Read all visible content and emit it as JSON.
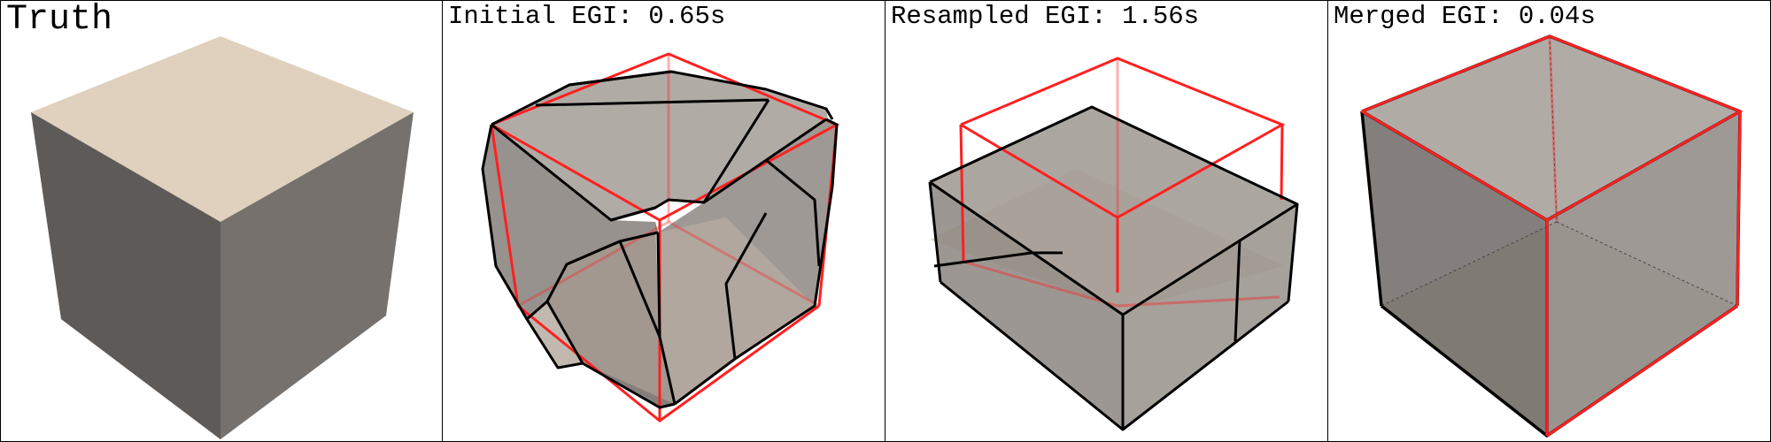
{
  "panels": [
    {
      "title": "Truth"
    },
    {
      "title": "Initial EGI: 0.65s"
    },
    {
      "title": "Resampled EGI: 1.56s"
    },
    {
      "title": "Merged EGI: 0.04s"
    }
  ],
  "colors": {
    "ground_truth_edges": "#ff2020",
    "mesh_edges": "#000000",
    "cube_top": "#dfd1bd",
    "cube_left": "#5e5a57",
    "cube_right": "#76716c",
    "translucent_face": "#8a8480"
  }
}
